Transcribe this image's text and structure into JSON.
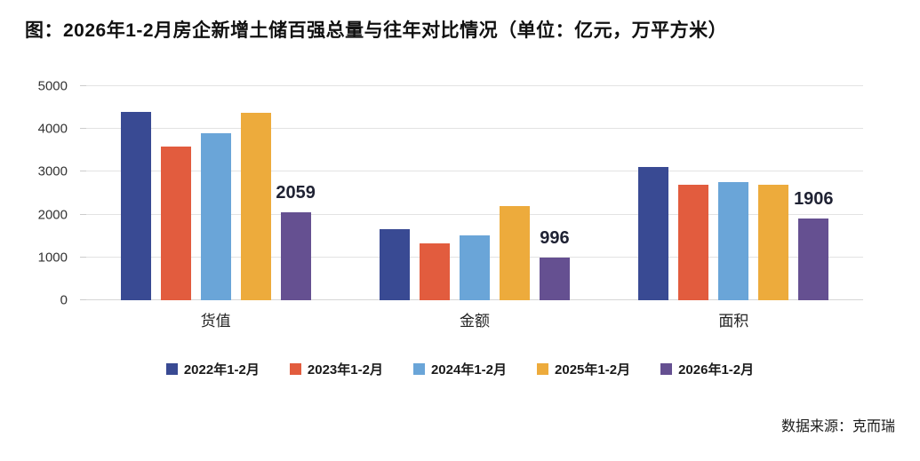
{
  "title": "图：2026年1-2月房企新增土储百强总量与往年对比情况（单位：亿元，万平方米）",
  "source": "数据来源：克而瑞",
  "colors": {
    "grid": "#e3e3e3",
    "axis_text": "#333333",
    "data_label_text": "#1f2233",
    "series_2022": "#394A93",
    "series_2023": "#E25C3E",
    "series_2024": "#6AA5D8",
    "series_2025": "#EDAB3C",
    "series_2026": "#655091"
  },
  "chart_data": {
    "type": "bar",
    "categories": [
      "货值",
      "金额",
      "面积"
    ],
    "series": [
      {
        "name": "2022年1-2月",
        "color": "#394A93",
        "values": [
          4400,
          1660,
          3120
        ]
      },
      {
        "name": "2023年1-2月",
        "color": "#E25C3E",
        "values": [
          3580,
          1330,
          2700
        ]
      },
      {
        "name": "2024年1-2月",
        "color": "#6AA5D8",
        "values": [
          3900,
          1520,
          2760
        ]
      },
      {
        "name": "2025年1-2月",
        "color": "#EDAB3C",
        "values": [
          4370,
          2190,
          2700
        ]
      },
      {
        "name": "2026年1-2月",
        "color": "#655091",
        "values": [
          2059,
          996,
          1906
        ]
      }
    ],
    "data_labels": {
      "series": "2026年1-2月",
      "values": [
        "2059",
        "996",
        "1906"
      ]
    },
    "ylim": [
      0,
      5000
    ],
    "yticks": [
      0,
      1000,
      2000,
      3000,
      4000,
      5000
    ],
    "grid": true,
    "legend_position": "bottom"
  }
}
